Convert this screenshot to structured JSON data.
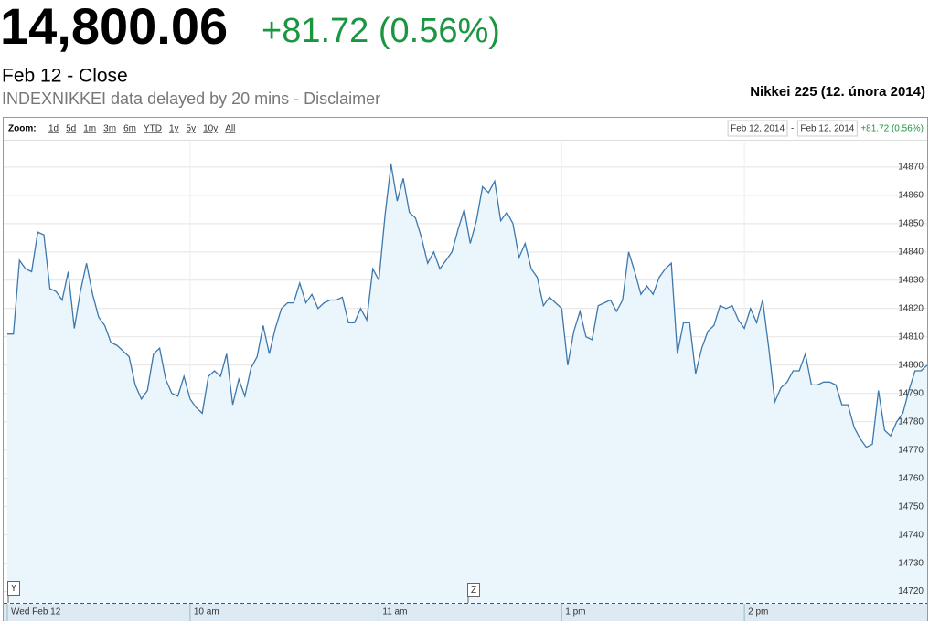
{
  "header": {
    "price": "14,800.06",
    "change": "+81.72 (0.56%)",
    "date": "Feb 12 - Close",
    "note": "INDEXNIKKEI data delayed by 20 mins - Disclaimer"
  },
  "chart_data": {
    "type": "area",
    "title": "Nikkei 225 (12. února 2014)",
    "zoom": {
      "label": "Zoom:",
      "options": [
        "1d",
        "5d",
        "1m",
        "3m",
        "6m",
        "YTD",
        "1y",
        "5y",
        "10y",
        "All"
      ]
    },
    "range": {
      "from": "Feb 12, 2014",
      "separator": "-",
      "to": "Feb 12, 2014",
      "change": "+81.72 (0.56%)"
    },
    "flags": [
      "Y",
      "Z"
    ],
    "color": "#3d78ad",
    "fill_color": "#eaf5fc",
    "change_color": "#1a9641",
    "grid": true,
    "values": [
      14811,
      14811,
      14837,
      14834,
      14833,
      14847,
      14846,
      14827,
      14826,
      14823,
      14833,
      14813,
      14826,
      14836,
      14825,
      14817,
      14814,
      14808,
      14807,
      14805,
      14803,
      14793,
      14788,
      14791,
      14804,
      14806,
      14795,
      14790,
      14789,
      14796,
      14788,
      14785,
      14783,
      14796,
      14798,
      14796,
      14804,
      14786,
      14795,
      14789,
      14799,
      14803,
      14814,
      14804,
      14813,
      14820,
      14822,
      14822,
      14829,
      14822,
      14825,
      14820,
      14822,
      14823,
      14823,
      14824,
      14815,
      14815,
      14820,
      14816,
      14834,
      14830,
      14853,
      14871,
      14858,
      14866,
      14854,
      14852,
      14845,
      14836,
      14840,
      14834,
      14837,
      14840,
      14848,
      14855,
      14843,
      14851,
      14863,
      14861,
      14865,
      14851,
      14854,
      14850,
      14838,
      14843,
      14834,
      14831,
      14821,
      14824,
      14822,
      14820,
      14800,
      14812,
      14819,
      14810,
      14809,
      14821,
      14822,
      14823,
      14819,
      14823,
      14840,
      14833,
      14825,
      14828,
      14825,
      14831,
      14834,
      14836,
      14804,
      14815,
      14815,
      14797,
      14806,
      14812,
      14814,
      14821,
      14820,
      14821,
      14816,
      14813,
      14820,
      14815,
      14823,
      14806,
      14787,
      14792,
      14794,
      14798,
      14798,
      14804,
      14793,
      14793,
      14794,
      14794,
      14793,
      14786,
      14786,
      14778,
      14774,
      14771,
      14772,
      14791,
      14777,
      14775,
      14780,
      14783,
      14791,
      14798,
      14798,
      14800
    ],
    "xlim": [
      0,
      151
    ],
    "xticks": [
      {
        "value": 0,
        "label": "Wed Feb 12"
      },
      {
        "value": 30,
        "label": "10 am"
      },
      {
        "value": 61,
        "label": "11 am"
      },
      {
        "value": 91,
        "label": "1 pm"
      },
      {
        "value": 121,
        "label": "2 pm"
      }
    ],
    "ylim": [
      14716,
      14879
    ],
    "yticks": [
      14720,
      14730,
      14740,
      14750,
      14760,
      14770,
      14780,
      14790,
      14800,
      14810,
      14820,
      14830,
      14840,
      14850,
      14860,
      14870
    ]
  }
}
